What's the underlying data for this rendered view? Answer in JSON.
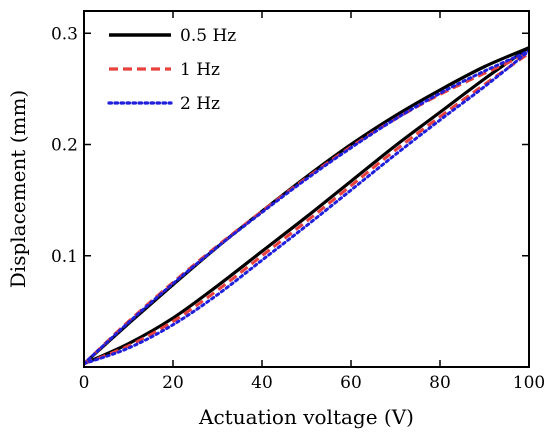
{
  "chart_data": {
    "type": "line",
    "title": "",
    "xlabel": "Actuation voltage (V)",
    "ylabel": "Displacement (mm)",
    "xlim": [
      0,
      100
    ],
    "ylim": [
      0,
      0.32
    ],
    "xticks": [
      {
        "value": 0,
        "label": "0"
      },
      {
        "value": 20,
        "label": "20"
      },
      {
        "value": 40,
        "label": "40"
      },
      {
        "value": 60,
        "label": "60"
      },
      {
        "value": 80,
        "label": "80"
      },
      {
        "value": 100,
        "label": "100"
      }
    ],
    "yticks": [
      {
        "value": 0.1,
        "label": "0.1"
      },
      {
        "value": 0.2,
        "label": "0.2"
      },
      {
        "value": 0.3,
        "label": "0.3"
      }
    ],
    "grid": false,
    "legend_position": "top-left",
    "series": [
      {
        "name": "0.5 Hz",
        "color": "#000000",
        "style": "solid",
        "upper": {
          "x": [
            0,
            10,
            20,
            30,
            40,
            50,
            60,
            70,
            80,
            90,
            100
          ],
          "y": [
            0.003,
            0.039,
            0.074,
            0.108,
            0.14,
            0.171,
            0.2,
            0.226,
            0.249,
            0.27,
            0.287
          ]
        },
        "lower": {
          "x": [
            0,
            10,
            20,
            30,
            40,
            50,
            60,
            70,
            80,
            90,
            100
          ],
          "y": [
            0.003,
            0.021,
            0.044,
            0.073,
            0.104,
            0.135,
            0.167,
            0.199,
            0.229,
            0.259,
            0.287
          ]
        }
      },
      {
        "name": "1 Hz",
        "color": "#e8413e",
        "style": "dashed",
        "upper": {
          "x": [
            0,
            10,
            20,
            30,
            40,
            50,
            60,
            70,
            80,
            90,
            100
          ],
          "y": [
            0.003,
            0.041,
            0.076,
            0.109,
            0.14,
            0.17,
            0.198,
            0.223,
            0.245,
            0.264,
            0.282
          ]
        },
        "lower": {
          "x": [
            0,
            10,
            20,
            30,
            40,
            50,
            60,
            70,
            80,
            90,
            100
          ],
          "y": [
            0.003,
            0.019,
            0.041,
            0.069,
            0.1,
            0.131,
            0.163,
            0.195,
            0.225,
            0.254,
            0.282
          ]
        }
      },
      {
        "name": "2 Hz",
        "color": "#1f1fdc",
        "style": "dotted",
        "upper": {
          "x": [
            0,
            10,
            20,
            30,
            40,
            50,
            60,
            70,
            80,
            90,
            100
          ],
          "y": [
            0.003,
            0.04,
            0.075,
            0.108,
            0.139,
            0.169,
            0.197,
            0.223,
            0.246,
            0.266,
            0.284
          ]
        },
        "lower": {
          "x": [
            0,
            10,
            20,
            30,
            40,
            50,
            60,
            70,
            80,
            90,
            100
          ],
          "y": [
            0.003,
            0.017,
            0.038,
            0.065,
            0.096,
            0.127,
            0.159,
            0.191,
            0.222,
            0.252,
            0.284
          ]
        }
      }
    ]
  }
}
